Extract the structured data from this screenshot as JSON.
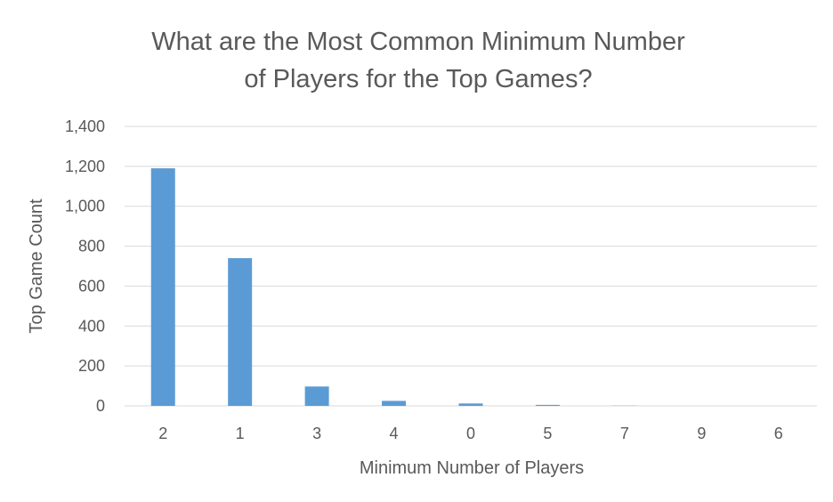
{
  "chart_data": {
    "type": "bar",
    "title": "What are the Most Common Minimum Number of Players for the Top Games?",
    "title_lines": [
      "What are the Most Common Minimum Number",
      "of Players for the Top Games?"
    ],
    "xlabel": "Minimum Number of Players",
    "ylabel": "Top Game Count",
    "categories": [
      "2",
      "1",
      "3",
      "4",
      "0",
      "5",
      "7",
      "9",
      "6"
    ],
    "values": [
      1190,
      740,
      97,
      25,
      12,
      5,
      1,
      0,
      0
    ],
    "ylim": [
      0,
      1400
    ],
    "yticks": [
      "0",
      "200",
      "400",
      "600",
      "800",
      "1,000",
      "1,200",
      "1,400"
    ],
    "ytick_values": [
      0,
      200,
      400,
      600,
      800,
      1000,
      1200,
      1400
    ],
    "grid": true,
    "legend": "none",
    "bar_color": "#5b9bd5",
    "grid_color": "#d9d9d9",
    "text_color": "#595959"
  }
}
